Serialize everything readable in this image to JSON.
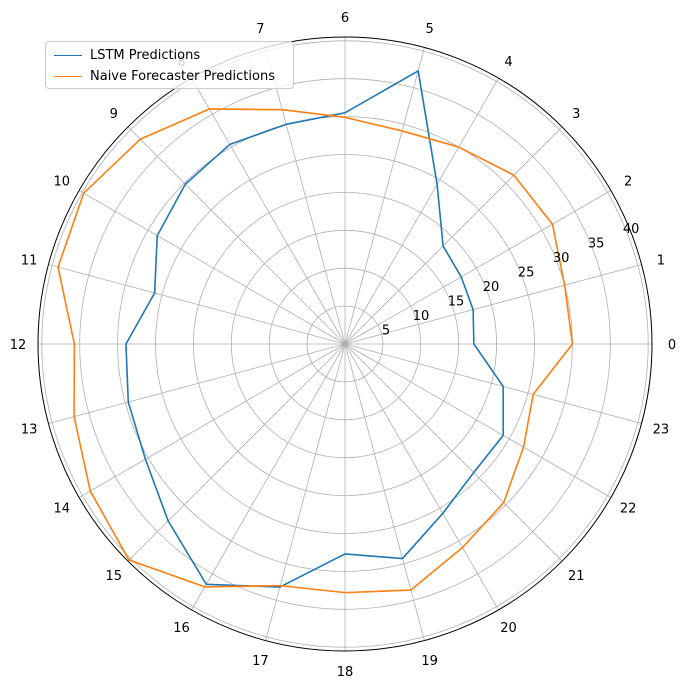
{
  "chart_data": {
    "type": "line",
    "projection": "polar",
    "theta_ticks": [
      "0",
      "1",
      "2",
      "3",
      "4",
      "5",
      "6",
      "7",
      "8",
      "9",
      "10",
      "11",
      "12",
      "13",
      "14",
      "15",
      "16",
      "17",
      "18",
      "19",
      "20",
      "21",
      "22",
      "23"
    ],
    "r_ticks": [
      "5",
      "10",
      "15",
      "20",
      "25",
      "30",
      "35",
      "40"
    ],
    "rlim": [
      0,
      40.5
    ],
    "grid": true,
    "legend_position": "top-left",
    "colors": {
      "lstm": "#1f77b4",
      "naive": "#ff7f0e"
    },
    "series": [
      {
        "name": "LSTM Predictions",
        "x": [
          0,
          1,
          2,
          3,
          4,
          5,
          6,
          7,
          8,
          9,
          10,
          11,
          12,
          13,
          14,
          15,
          16,
          17,
          18,
          19,
          20,
          21,
          22,
          23
        ],
        "values": [
          17.0,
          17.5,
          17.7,
          18.3,
          24.3,
          37.3,
          30.5,
          30.0,
          30.4,
          29.8,
          28.6,
          26.0,
          28.9,
          29.6,
          30.4,
          33.0,
          36.6,
          33.2,
          27.7,
          29.3,
          25.8,
          24.0,
          24.1,
          21.6
        ],
        "color": "#1f77b4"
      },
      {
        "name": "Naive Forecaster Predictions",
        "x": [
          0,
          1,
          2,
          3,
          4,
          5,
          6,
          7,
          8,
          9,
          10,
          11,
          12,
          13,
          14,
          15,
          16,
          17,
          18,
          19,
          20,
          21,
          22,
          23
        ],
        "values": [
          30.0,
          30.0,
          31.6,
          31.5,
          30.0,
          29.1,
          29.9,
          32.0,
          35.8,
          38.2,
          39.8,
          39.2,
          35.7,
          37.0,
          38.8,
          40.3,
          37.0,
          33.0,
          32.8,
          33.6,
          31.0,
          29.6,
          27.2,
          25.7
        ],
        "color": "#ff7f0e"
      }
    ]
  }
}
